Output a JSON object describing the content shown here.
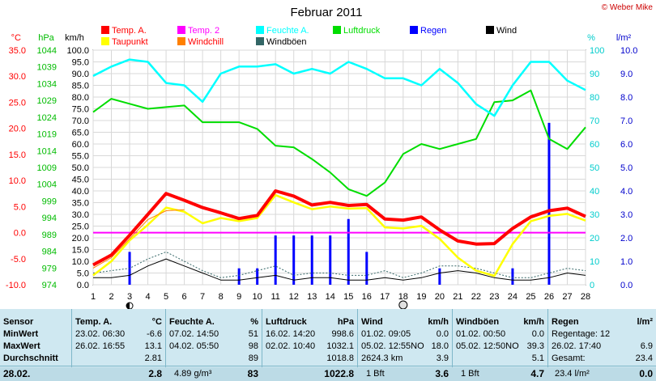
{
  "chart_data": {
    "type": "line",
    "title": "Februar 2011",
    "copyright": "© Weber Mike",
    "x": [
      1,
      2,
      3,
      4,
      5,
      6,
      7,
      8,
      9,
      10,
      11,
      12,
      13,
      14,
      15,
      16,
      17,
      18,
      19,
      20,
      21,
      22,
      23,
      24,
      25,
      26,
      27,
      28
    ],
    "xlim": [
      1,
      28
    ],
    "legend": [
      {
        "name": "Temp. A.",
        "color": "#ff0000"
      },
      {
        "name": "Temp. 2",
        "color": "#ff00ff"
      },
      {
        "name": "Feuchte A.",
        "color": "#00ffff"
      },
      {
        "name": "Luftdruck",
        "color": "#00dd00"
      },
      {
        "name": "Regen",
        "color": "#0000ff"
      },
      {
        "name": "Wind",
        "color": "#000000"
      },
      {
        "name": "Taupunkt",
        "color": "#ffff00"
      },
      {
        "name": "Windchill",
        "color": "#ff8000"
      },
      {
        "name": "Windböen",
        "color": "#336666"
      }
    ],
    "axes": {
      "temp": {
        "unit": "°C",
        "ticks": [
          "35.0",
          "30.0",
          "25.0",
          "20.0",
          "15.0",
          "10.0",
          "5.0",
          "0.0",
          "-5.0",
          "-10.0"
        ],
        "range": [
          -10,
          35
        ],
        "color": "#ff0000"
      },
      "hpa": {
        "unit": "hPa",
        "ticks": [
          "1044",
          "1039",
          "1034",
          "1029",
          "1024",
          "1019",
          "1014",
          "1009",
          "1004",
          "999",
          "994",
          "989",
          "984",
          "979",
          "974"
        ],
        "range": [
          974,
          1044
        ],
        "color": "#00bb00"
      },
      "kmh": {
        "unit": "km/h",
        "ticks": [
          "100.0",
          "95.0",
          "90.0",
          "85.0",
          "80.0",
          "75.0",
          "70.0",
          "65.0",
          "60.0",
          "55.0",
          "50.0",
          "45.0",
          "40.0",
          "35.0",
          "30.0",
          "25.0",
          "20.0",
          "15.0",
          "10.0",
          "5.0",
          "0.0"
        ],
        "range": [
          0,
          100
        ],
        "color": "#000000"
      },
      "pct": {
        "unit": "%",
        "ticks": [
          "100",
          "90",
          "80",
          "70",
          "60",
          "50",
          "40",
          "30",
          "20",
          "10",
          "0"
        ],
        "range": [
          0,
          100
        ],
        "color": "#00cccc"
      },
      "rain": {
        "unit": "l/m²",
        "ticks": [
          "10.0",
          "9.0",
          "8.0",
          "7.0",
          "6.0",
          "5.0",
          "4.0",
          "3.0",
          "2.0",
          "1.0",
          "0.0"
        ],
        "range": [
          0,
          10
        ],
        "color": "#0000cc"
      }
    },
    "series": [
      {
        "name": "Temp. A.",
        "axis": "temp",
        "values": [
          -6.2,
          -4.3,
          -0.5,
          3.5,
          7.5,
          6.2,
          4.8,
          3.8,
          2.7,
          3.3,
          8.0,
          7.0,
          5.3,
          5.8,
          5.2,
          5.4,
          2.6,
          2.4,
          3.0,
          0.5,
          -1.6,
          -2.2,
          -2.1,
          0.8,
          3.0,
          4.2,
          4.7,
          3.1
        ]
      },
      {
        "name": "Taupunkt",
        "axis": "temp",
        "values": [
          -8.2,
          -5.5,
          -1.5,
          1.5,
          4.8,
          4.0,
          1.8,
          2.8,
          2.2,
          2.8,
          7.2,
          5.8,
          4.5,
          5.0,
          4.6,
          4.7,
          1.0,
          0.8,
          1.3,
          -1.2,
          -4.8,
          -7.3,
          -8.3,
          -2.2,
          2.2,
          3.2,
          3.6,
          2.3
        ]
      },
      {
        "name": "Windchill",
        "axis": "temp",
        "values": [
          -6.8,
          -4.8,
          -1.2,
          2.5,
          4.2,
          4.4,
          null,
          null,
          null,
          null,
          null,
          null,
          null,
          null,
          null,
          null,
          null,
          null,
          null,
          null,
          null,
          null,
          null,
          null,
          null,
          null,
          null,
          null
        ]
      },
      {
        "name": "Temp. 2",
        "axis": "temp",
        "values": [
          0.0,
          0.0,
          0.0,
          0.0,
          0.0,
          0.0,
          0.0,
          0.0,
          0.0,
          0.0,
          0.0,
          0.0,
          0.0,
          0.0,
          0.0,
          0.0,
          0.0,
          0.0,
          0.0,
          0.0,
          0.0,
          0.0,
          0.0,
          0.0,
          0.0,
          0.0,
          0.0,
          0.0
        ]
      },
      {
        "name": "Feuchte A.",
        "axis": "pct",
        "values": [
          89,
          93,
          96,
          95,
          86,
          85,
          78,
          90,
          93,
          93,
          94,
          90,
          92,
          90,
          95,
          92,
          88,
          88,
          85,
          92,
          86,
          77,
          72,
          85,
          95,
          95,
          87,
          83
        ]
      },
      {
        "name": "Luftdruck",
        "axis": "hpa",
        "values": [
          1025.5,
          1029.5,
          1028,
          1026.5,
          1027,
          1027.5,
          1022.5,
          1022.5,
          1022.5,
          1020.5,
          1015.5,
          1015,
          1011.5,
          1007.5,
          1002.5,
          1000.5,
          1004.5,
          1013,
          1016,
          1014.5,
          1016,
          1017.5,
          1028.5,
          1029,
          1032,
          1017.5,
          1014.5,
          1021
        ]
      },
      {
        "name": "Wind",
        "axis": "kmh",
        "values": [
          3,
          3,
          4,
          8,
          11,
          8,
          5,
          2,
          2,
          3,
          4,
          2,
          3,
          3,
          2,
          2,
          3,
          2,
          3,
          5,
          6,
          5,
          3,
          2,
          2,
          3,
          5,
          4
        ]
      },
      {
        "name": "Windböen",
        "axis": "kmh",
        "values": [
          5,
          6,
          7,
          11,
          14,
          10,
          6,
          3,
          4,
          6,
          8,
          4,
          5,
          5,
          4,
          4,
          6,
          3,
          5,
          8,
          8,
          7,
          5,
          3,
          3,
          5,
          7,
          6
        ]
      },
      {
        "name": "Regen",
        "axis": "rain",
        "type": "bar",
        "values": [
          0,
          0,
          1.4,
          0,
          0,
          0,
          0,
          0,
          0.7,
          0.7,
          2.1,
          2.1,
          2.1,
          2.1,
          2.8,
          1.4,
          0,
          0,
          0,
          0.7,
          0,
          0,
          0,
          0.7,
          0,
          6.9,
          0,
          0
        ]
      }
    ],
    "markers": [
      {
        "x": 3,
        "symbol": "new-moon"
      },
      {
        "x": 18,
        "symbol": "full-moon"
      }
    ]
  },
  "table": {
    "rows": [
      "Sensor",
      "MinWert",
      "MaxWert",
      "Durchschnitt",
      "28.02."
    ],
    "temp": {
      "title": "Temp. A.",
      "unit": "°C",
      "min": [
        "23.02.  06:30",
        "-6.6"
      ],
      "max": [
        "26.02.  16:55",
        "13.1"
      ],
      "avg": "2.81",
      "cur": "2.8"
    },
    "hum": {
      "title": "Feuchte A.",
      "unit": "%",
      "min": [
        "07.02.  14:50",
        "51"
      ],
      "max": [
        "04.02.  05:50",
        "98"
      ],
      "avg": "89",
      "cur_l": "4.89 g/m³",
      "cur": "83"
    },
    "press": {
      "title": "Luftdruck",
      "unit": "hPa",
      "min": [
        "16.02.  14:20",
        "998.6"
      ],
      "max": [
        "02.02.  10:40",
        "1032.1"
      ],
      "avg": "1018.8",
      "cur": "1022.8"
    },
    "wind": {
      "title": "Wind",
      "unit": "km/h",
      "min": [
        "01.02.  09:05",
        "0.0"
      ],
      "max": [
        "05.02.  12:55NO",
        "18.0"
      ],
      "avg_l": "2624.3 km",
      "avg": "3.9",
      "cur_l": "1 Bft",
      "cur": "3.6"
    },
    "gust": {
      "title": "Windböen",
      "unit": "km/h",
      "min": [
        "01.02.  00:50",
        "0.0"
      ],
      "max": [
        "05.02.  12:50NO",
        "39.3"
      ],
      "avg": "5.1",
      "cur_l": "1 Bft",
      "cur": "4.7"
    },
    "rain": {
      "title": "Regen",
      "unit": "l/m²",
      "min_l": "Regentage: 12",
      "max": [
        "26.02.  17:40",
        "6.9"
      ],
      "avg_l": "Gesamt:",
      "avg": "23.4",
      "cur_l": "23.4 l/m²",
      "cur": "0.0"
    }
  }
}
